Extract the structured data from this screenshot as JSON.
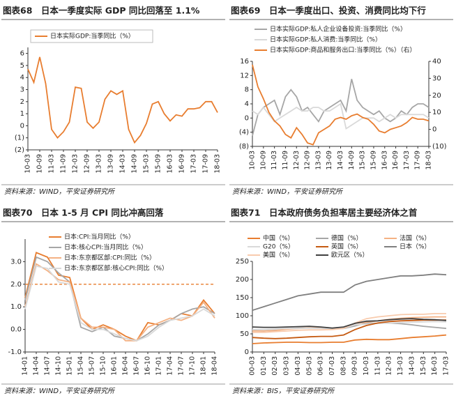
{
  "chart_data": [
    {
      "type": "line",
      "title": "图表68　日本一季度实际 GDP 同比回落至 1.1%",
      "source": "资料来源：WIND，平安证券研究所",
      "categories": [
        "10-03",
        null,
        "10-09",
        null,
        "11-03",
        null,
        "11-09",
        null,
        "12-03",
        null,
        "12-09",
        null,
        "13-03",
        null,
        "13-09",
        null,
        "14-03",
        null,
        "14-09",
        null,
        "15-03",
        null,
        "15-09",
        null,
        "16-03",
        null,
        "16-09",
        null,
        "17-03",
        null,
        "17-09",
        null,
        "18-03"
      ],
      "series": [
        {
          "name": "日本实际GDP:当季同比（%）",
          "color": "#e87d2f",
          "values": [
            4.7,
            3.6,
            5.7,
            3.5,
            -0.3,
            -1.0,
            -0.5,
            0.3,
            3.2,
            3.1,
            0.3,
            -0.2,
            0.3,
            2.2,
            2.9,
            2.6,
            2.9,
            -0.3,
            -1.4,
            -0.8,
            0.2,
            1.8,
            2.0,
            1.0,
            0.4,
            0.9,
            0.8,
            1.4,
            1.4,
            1.5,
            2.0,
            2.0,
            1.1
          ]
        }
      ],
      "ylim": [
        -2,
        6.5
      ],
      "yticks": [
        6,
        5,
        4,
        3,
        2,
        1,
        0,
        {
          "value": -1,
          "label": "(1)"
        },
        {
          "value": -2,
          "label": "(2)"
        }
      ]
    },
    {
      "type": "line",
      "title": "图表69　日本一季度出口、投资、消费同比均下行",
      "source": "资料来源：WIND，平安证券研究所",
      "categories": [
        "10-03",
        null,
        "10-09",
        null,
        "11-03",
        null,
        "11-09",
        null,
        "12-03",
        null,
        "12-09",
        null,
        "13-03",
        null,
        "13-09",
        null,
        "14-03",
        null,
        "14-09",
        null,
        "15-03",
        null,
        "15-09",
        null,
        "16-03",
        null,
        "16-09",
        null,
        "17-03",
        null,
        "17-09",
        null,
        "18-03"
      ],
      "series": [
        {
          "name": "日本实际GDP:私人企业设备投资:当季同比（%）",
          "color": "#a6a6a6",
          "values": [
            -5,
            1,
            3,
            4,
            5,
            1,
            6,
            8,
            6,
            2,
            3,
            1,
            -1,
            2,
            3,
            4,
            5,
            2,
            11,
            5,
            3,
            2,
            1,
            2,
            0,
            -1,
            0,
            2,
            1,
            3,
            4,
            4,
            3
          ]
        },
        {
          "name": "日本实际GDP:私人消费:当季同比（%）",
          "color": "#d9d9d9",
          "values": [
            2,
            1,
            3,
            1,
            -1,
            0,
            1,
            2,
            3,
            2,
            2,
            3,
            3,
            2,
            2,
            3,
            4,
            -3,
            -2,
            -1,
            0,
            0,
            0,
            -1,
            0,
            1,
            0,
            1,
            1,
            1,
            1,
            1,
            0
          ]
        },
        {
          "name": "日本实际GDP:商品和服务出口:当季同比（%）（右）",
          "color": "#e87d2f",
          "axis": "y2",
          "values": [
            38,
            25,
            18,
            10,
            5,
            2,
            -3,
            -5,
            1,
            -3,
            -8,
            -9,
            -2,
            0,
            2,
            6,
            7,
            6,
            8,
            9,
            7,
            6,
            3,
            -1,
            -2,
            0,
            1,
            2,
            4,
            7,
            6,
            6,
            5
          ]
        }
      ],
      "ylim": [
        -8,
        16
      ],
      "yticks": [
        16,
        12,
        8,
        4,
        0,
        {
          "value": -4,
          "label": "(4)"
        },
        {
          "value": -8,
          "label": "(8)"
        }
      ],
      "y2lim": [
        -10,
        40
      ],
      "y2ticks": [
        40,
        30,
        20,
        10,
        0,
        {
          "value": -10,
          "label": "(10)"
        }
      ]
    },
    {
      "type": "line",
      "title": "图表70　日本 1-5 月 CPI 同比冲高回落",
      "source": "资料来源：WIND，平安证券研究所",
      "categories": [
        "14-01",
        "14-04",
        "14-07",
        "14-10",
        "15-01",
        "15-04",
        "15-07",
        "15-10",
        "16-01",
        "16-04",
        "16-07",
        "16-10",
        "17-01",
        "17-04",
        "17-07",
        "17-10",
        "18-01",
        "18-04"
      ],
      "series": [
        {
          "name": "日本:CPI:当月同比（%）",
          "color": "#e87d2f",
          "values": [
            1.4,
            3.4,
            3.2,
            2.4,
            2.3,
            0.5,
            0.0,
            0.2,
            0.0,
            -0.3,
            -0.5,
            0.3,
            0.2,
            0.4,
            0.7,
            0.6,
            1.3,
            0.7
          ]
        },
        {
          "name": "日本:核心CPI:当月同比（%）",
          "color": "#a6a6a6",
          "values": [
            1.3,
            3.2,
            3.0,
            2.5,
            2.1,
            0.1,
            -0.1,
            0.1,
            -0.3,
            -0.4,
            -0.5,
            -0.2,
            0.2,
            0.4,
            0.7,
            0.9,
            1.0,
            0.7
          ]
        },
        {
          "name": "日本:东京都区部:CPI:同比（%）",
          "color": "#f4b183",
          "values": [
            1.0,
            2.9,
            2.6,
            2.2,
            2.1,
            0.5,
            0.1,
            0.1,
            0.0,
            -0.5,
            -0.5,
            0.1,
            0.3,
            0.5,
            0.4,
            0.6,
            1.2,
            0.5
          ]
        },
        {
          "name": "日本:东京都区部:核心CPI:同比（%）",
          "color": "#d9d9d9",
          "values": [
            0.9,
            2.8,
            2.7,
            2.1,
            2.0,
            0.3,
            0.0,
            0.0,
            -0.2,
            -0.4,
            -0.5,
            -0.3,
            0.1,
            0.4,
            0.5,
            0.6,
            0.9,
            0.6
          ]
        }
      ],
      "reference_line": 2,
      "reference_color": "#e87d2f",
      "ylim": [
        -1,
        4
      ],
      "yticks": [
        {
          "value": 3,
          "label": "3.0"
        },
        {
          "value": 2,
          "label": "2.0"
        },
        {
          "value": 1,
          "label": "1.0"
        },
        {
          "value": 0,
          "label": "0.0"
        },
        {
          "value": -1,
          "label": "-1.0"
        }
      ]
    },
    {
      "type": "line",
      "title": "图表71　日本政府债务负担率居主要经济体之首",
      "source": "资料来源：BIS，平安证券研究所",
      "categories": [
        "00-03",
        "01-03",
        "02-03",
        "03-03",
        "04-03",
        "05-03",
        "06-03",
        "07-03",
        "08-03",
        "09-03",
        "10-03",
        "11-03",
        "12-03",
        "13-03",
        "14-03",
        "15-03",
        "16-03",
        "17-03"
      ],
      "series": [
        {
          "name": "中国（%）",
          "color": "#e87d2f",
          "values": [
            23,
            25,
            26,
            27,
            27,
            26,
            26,
            27,
            27,
            33,
            35,
            34,
            34,
            37,
            40,
            42,
            44,
            47
          ]
        },
        {
          "name": "德国（%）",
          "color": "#a6a6a6",
          "values": [
            59,
            58,
            60,
            64,
            66,
            67,
            67,
            64,
            65,
            72,
            80,
            79,
            80,
            78,
            75,
            71,
            68,
            65
          ]
        },
        {
          "name": "法国（%）",
          "color": "#f4b183",
          "values": [
            58,
            58,
            59,
            63,
            65,
            67,
            66,
            64,
            66,
            79,
            82,
            86,
            90,
            93,
            95,
            96,
            97,
            97
          ]
        },
        {
          "name": "G20（%）",
          "color": "#d9d9d9",
          "values": [
            62,
            62,
            63,
            65,
            65,
            66,
            65,
            64,
            66,
            75,
            77,
            79,
            80,
            81,
            82,
            83,
            84,
            83
          ]
        },
        {
          "name": "英国（%）",
          "color": "#c55a11",
          "values": [
            40,
            38,
            37,
            38,
            40,
            42,
            43,
            43,
            47,
            62,
            73,
            80,
            84,
            86,
            87,
            88,
            88,
            88
          ]
        },
        {
          "name": "日本（%）",
          "color": "#7f7f7f",
          "values": [
            115,
            125,
            135,
            145,
            155,
            160,
            165,
            165,
            165,
            185,
            195,
            200,
            205,
            210,
            210,
            212,
            215,
            213
          ]
        },
        {
          "name": "美国（%）",
          "color": "#f8cbad",
          "values": [
            54,
            54,
            56,
            58,
            60,
            61,
            61,
            62,
            65,
            80,
            92,
            97,
            100,
            103,
            104,
            104,
            106,
            106
          ]
        },
        {
          "name": "欧元区（%）",
          "color": "#404040",
          "values": [
            69,
            68,
            68,
            69,
            70,
            71,
            69,
            66,
            69,
            79,
            85,
            86,
            89,
            91,
            92,
            90,
            89,
            87
          ]
        }
      ],
      "legend_columns": 3,
      "ylim": [
        0,
        250
      ],
      "yticks": [
        250,
        200,
        150,
        100,
        50,
        0
      ]
    }
  ]
}
